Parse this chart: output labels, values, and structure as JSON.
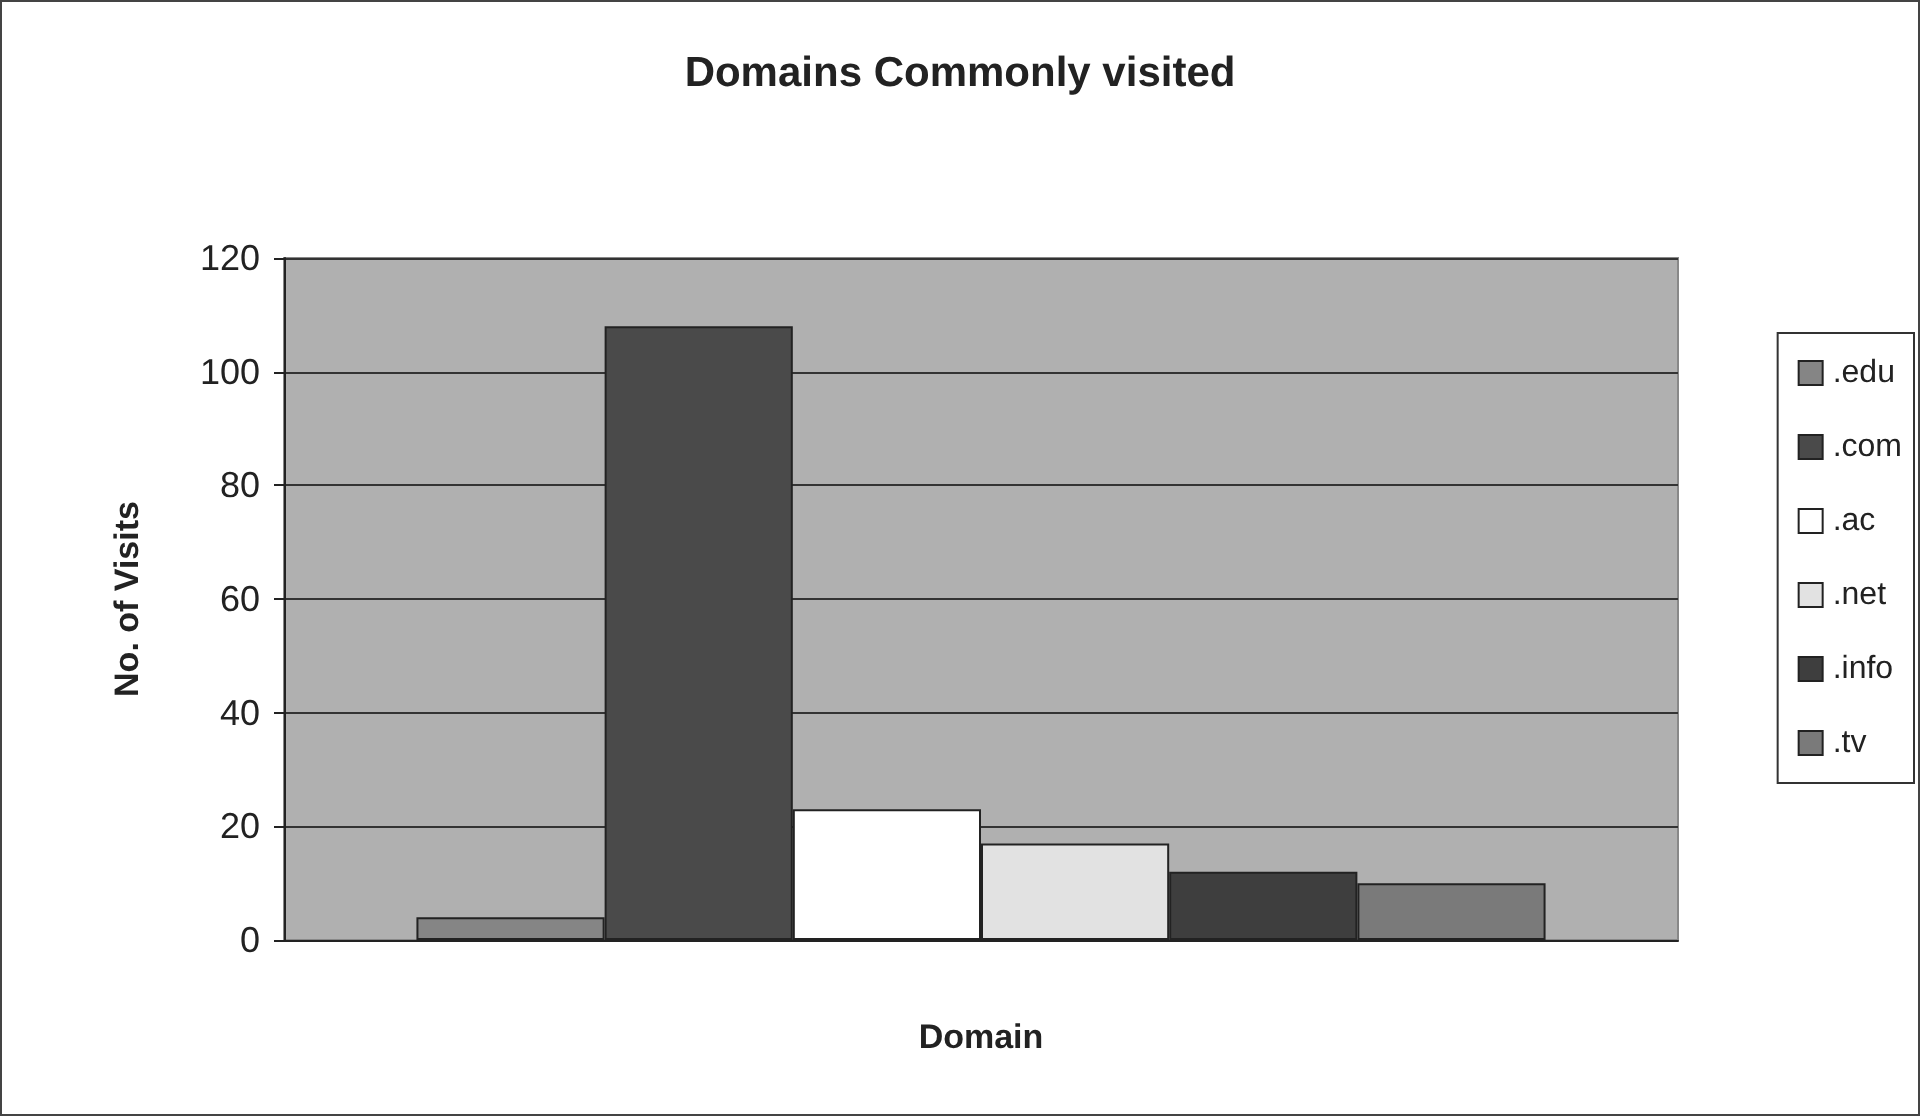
{
  "chart_data": {
    "type": "bar",
    "title": "Domains Commonly visited",
    "xlabel": "Domain",
    "ylabel": "No. of Visits",
    "categories": [
      null
    ],
    "series": [
      {
        "name": ".edu",
        "color": "#858585",
        "values": [
          4
        ]
      },
      {
        "name": ".com",
        "color": "#4a4a4a",
        "values": [
          108
        ]
      },
      {
        "name": ".ac",
        "color": "#ffffff",
        "values": [
          23
        ]
      },
      {
        "name": ".net",
        "color": "#e2e2e2",
        "values": [
          17
        ]
      },
      {
        "name": ".info",
        "color": "#3e3e3e",
        "values": [
          12
        ]
      },
      {
        "name": ".tv",
        "color": "#7a7a7a",
        "values": [
          10
        ]
      }
    ],
    "ylim": [
      0,
      120
    ],
    "yticks": [
      0,
      20,
      40,
      60,
      80,
      100,
      120
    ],
    "grid": "y",
    "legend": "right"
  }
}
